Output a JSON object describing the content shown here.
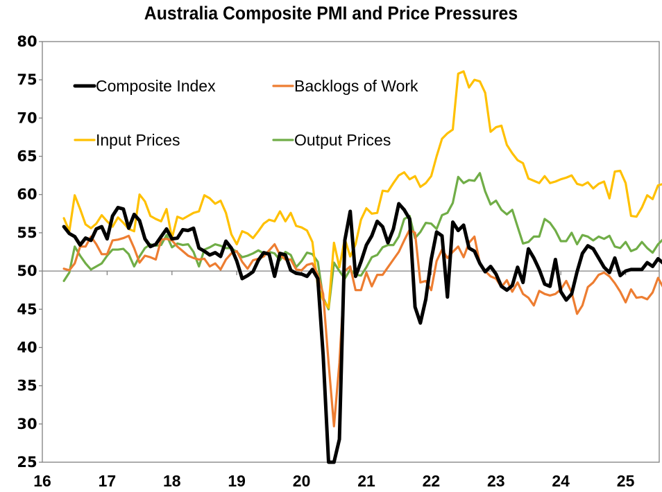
{
  "chart_data": {
    "type": "line",
    "title": "Australia Composite PMI and Price Pressures",
    "xlabel": "",
    "ylabel": "",
    "ylim": [
      25,
      80
    ],
    "yticks": [
      80,
      75,
      70,
      65,
      60,
      55,
      50,
      45,
      40,
      35,
      30,
      25
    ],
    "xlim_years": [
      2016,
      2025.6
    ],
    "xtick_labels": [
      "16",
      "17",
      "18",
      "19",
      "20",
      "21",
      "22",
      "23",
      "24",
      "25"
    ],
    "reference_line": 50,
    "grid": false,
    "legend_position": "top-left",
    "x_start": "2016-05",
    "x_frequency": "monthly",
    "series": [
      {
        "name": "Composite Index",
        "color": "#000000",
        "values": [
          55.8,
          54.9,
          54.5,
          53.4,
          54.3,
          54.0,
          55.5,
          55.8,
          54.2,
          57.2,
          58.3,
          58.1,
          55.6,
          57.4,
          56.6,
          54.2,
          53.2,
          53.5,
          54.5,
          55.5,
          54.2,
          54.3,
          55.4,
          55.3,
          55.6,
          53.0,
          52.6,
          52.1,
          52.4,
          51.9,
          53.9,
          53.0,
          51.3,
          49.0,
          49.4,
          49.9,
          51.4,
          52.4,
          52.2,
          49.3,
          52.3,
          52.1,
          50.1,
          49.7,
          49.6,
          49.3,
          50.2,
          49.0,
          39.0,
          25.0,
          25.0,
          28.0,
          54.0,
          57.8,
          49.3,
          51.2,
          53.4,
          54.6,
          56.5,
          55.8,
          53.7,
          55.5,
          58.8,
          58.0,
          56.8,
          45.3,
          43.2,
          46.3,
          51.5,
          55.1,
          54.6,
          46.6,
          56.4,
          55.3,
          56.0,
          53.0,
          52.6,
          51.0,
          49.9,
          50.6,
          49.6,
          48.0,
          47.5,
          48.1,
          50.5,
          48.5,
          52.9,
          51.7,
          50.2,
          48.3,
          48.0,
          51.5,
          47.3,
          46.2,
          47.0,
          49.9,
          52.3,
          53.3,
          52.9,
          51.7,
          50.5,
          49.8,
          51.7,
          49.4,
          50.0,
          50.2,
          50.2,
          50.2,
          51.1,
          50.6,
          51.6,
          51.0,
          50.6,
          51.3
        ]
      },
      {
        "name": "Backlogs of Work",
        "color": "#ED7D31",
        "values": [
          50.3,
          50.1,
          51.0,
          53.2,
          53.2,
          54.5,
          53.5,
          52.2,
          52.2,
          54.0,
          54.1,
          54.3,
          54.6,
          53.0,
          51.1,
          52.0,
          51.8,
          51.5,
          54.1,
          54.2,
          54.0,
          53.2,
          52.6,
          52.0,
          51.7,
          51.5,
          51.6,
          50.6,
          51.0,
          50.2,
          51.5,
          52.3,
          52.6,
          51.2,
          50.3,
          51.4,
          51.6,
          51.9,
          52.7,
          53.5,
          52.1,
          51.5,
          51.5,
          50.2,
          50.1,
          50.8,
          51.0,
          49.5,
          47.0,
          38.0,
          29.7,
          38.0,
          50.0,
          50.6,
          47.5,
          47.5,
          49.8,
          48.0,
          49.5,
          49.5,
          50.5,
          51.5,
          52.5,
          54.0,
          55.4,
          55.0,
          48.5,
          48.7,
          47.5,
          51.3,
          52.8,
          51.7,
          52.5,
          53.2,
          51.8,
          53.7,
          54.5,
          51.0,
          50.0,
          49.3,
          49.0,
          47.9,
          48.8,
          47.3,
          48.5,
          47.0,
          46.5,
          45.5,
          47.4,
          47.0,
          46.8,
          47.0,
          47.6,
          48.7,
          47.2,
          44.4,
          45.5,
          47.9,
          48.5,
          49.5,
          49.8,
          49.3,
          48.4,
          47.3,
          45.9,
          47.6,
          46.5,
          46.6,
          46.3,
          47.2,
          49.1,
          47.8,
          51.0,
          50.8,
          48.3,
          47.5
        ]
      },
      {
        "name": "Input Prices",
        "color": "#FFC000",
        "values": [
          56.9,
          55.2,
          59.9,
          58.1,
          56.1,
          55.6,
          56.2,
          57.3,
          56.5,
          55.8,
          57.0,
          56.3,
          55.5,
          55.2,
          60.0,
          59.1,
          57.2,
          56.8,
          56.5,
          58.1,
          54.3,
          57.1,
          56.8,
          57.2,
          57.6,
          57.8,
          59.9,
          59.5,
          58.8,
          59.2,
          57.6,
          54.8,
          53.5,
          55.2,
          54.9,
          54.3,
          55.2,
          56.2,
          56.7,
          56.5,
          57.8,
          56.5,
          57.6,
          55.9,
          55.7,
          55.3,
          53.8,
          48.0,
          46.2,
          45.2,
          53.7,
          50.5,
          54.2,
          51.9,
          53.5,
          56.7,
          58.2,
          57.5,
          57.6,
          60.5,
          60.4,
          61.5,
          62.5,
          62.9,
          62.0,
          62.4,
          61.0,
          61.5,
          62.4,
          65.0,
          67.3,
          68.0,
          68.5,
          75.8,
          76.1,
          74.0,
          75.0,
          74.8,
          73.3,
          68.2,
          68.8,
          69.0,
          66.5,
          65.4,
          64.5,
          64.1,
          62.1,
          61.8,
          61.5,
          62.4,
          61.5,
          61.7,
          62.0,
          62.2,
          62.5,
          61.4,
          61.2,
          61.6,
          60.8,
          61.4,
          61.7,
          59.5,
          63.0,
          63.1,
          61.5,
          57.2,
          57.1,
          58.3,
          59.9,
          59.4,
          61.2,
          61.4,
          60.2,
          58.2
        ]
      },
      {
        "name": "Output Prices",
        "color": "#70AD47",
        "values": [
          48.7,
          49.8,
          53.2,
          52.0,
          51.0,
          50.2,
          50.6,
          51.0,
          52.0,
          52.8,
          52.8,
          52.9,
          52.2,
          50.6,
          51.9,
          53.0,
          53.5,
          53.3,
          53.4,
          54.7,
          53.1,
          53.6,
          53.4,
          53.5,
          52.5,
          50.6,
          52.8,
          53.1,
          53.5,
          53.3,
          53.0,
          53.0,
          52.5,
          51.8,
          52.0,
          52.3,
          52.7,
          52.3,
          52.5,
          52.3,
          51.4,
          52.5,
          52.1,
          50.5,
          51.3,
          52.4,
          52.2,
          51.2,
          46.5,
          45.0,
          51.1,
          50.0,
          49.0,
          50.2,
          49.5,
          49.4,
          50.5,
          51.8,
          52.1,
          53.1,
          53.4,
          53.4,
          54.5,
          56.8,
          57.2,
          54.3,
          55.1,
          56.3,
          56.2,
          55.5,
          57.3,
          57.6,
          58.9,
          62.3,
          61.5,
          61.9,
          61.8,
          62.8,
          60.4,
          58.7,
          59.2,
          58.0,
          57.4,
          58.0,
          55.8,
          53.6,
          53.8,
          54.5,
          54.5,
          56.8,
          56.3,
          55.3,
          53.9,
          53.9,
          55.0,
          53.5,
          54.7,
          54.5,
          54.0,
          54.5,
          54.2,
          54.6,
          53.2,
          53.0,
          53.8,
          52.6,
          52.9,
          53.8,
          53.0,
          52.4,
          53.5,
          54.2,
          53.6,
          53.2,
          54.7,
          52.3,
          51.8
        ]
      }
    ]
  }
}
